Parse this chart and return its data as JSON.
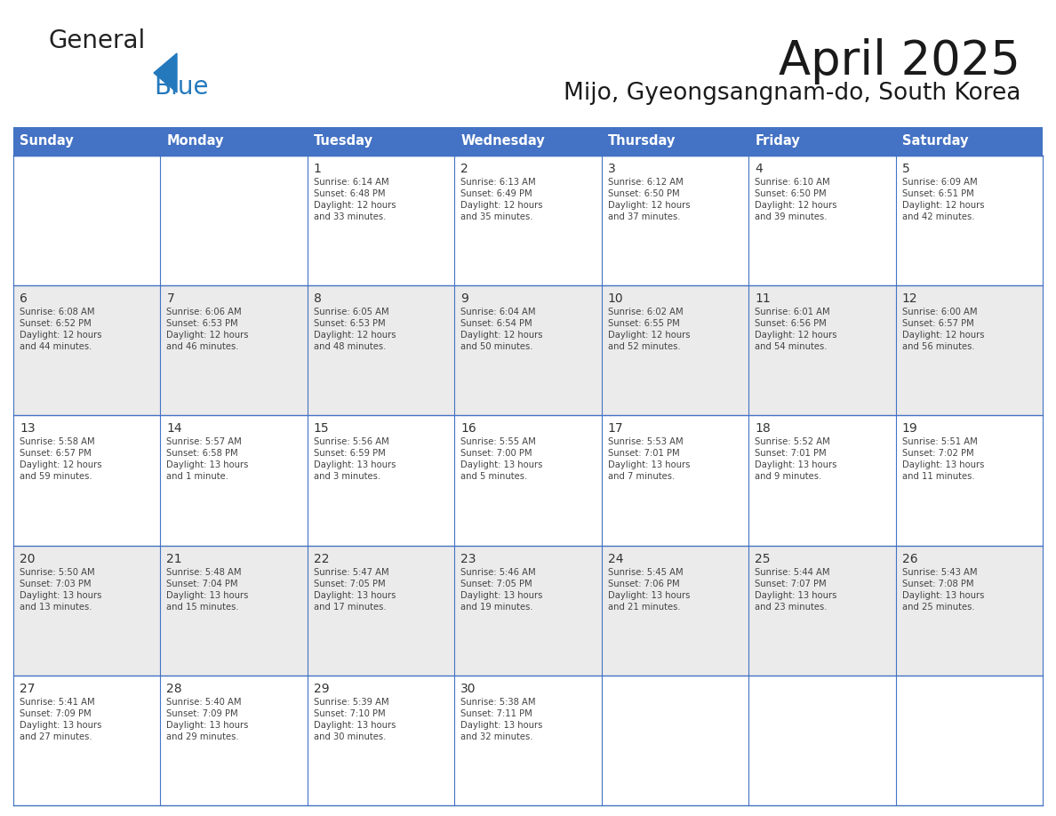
{
  "title": "April 2025",
  "subtitle": "Mijo, Gyeongsangnam-do, South Korea",
  "header_bg_color": "#4472C4",
  "header_text_color": "#FFFFFF",
  "header_font_size": 10.5,
  "day_names": [
    "Sunday",
    "Monday",
    "Tuesday",
    "Wednesday",
    "Thursday",
    "Friday",
    "Saturday"
  ],
  "title_font_size": 38,
  "subtitle_font_size": 19,
  "cell_text_color": "#444444",
  "day_number_color": "#333333",
  "line_color": "#4472C4",
  "row_bg_colors": [
    "#FFFFFF",
    "#EBEBEB",
    "#FFFFFF",
    "#EBEBEB",
    "#FFFFFF"
  ],
  "logo_general_color": "#222222",
  "logo_blue_color": "#2479BD",
  "weeks": [
    {
      "days": [
        {
          "date": "",
          "sunrise": "",
          "sunset": "",
          "daylight": ""
        },
        {
          "date": "",
          "sunrise": "",
          "sunset": "",
          "daylight": ""
        },
        {
          "date": "1",
          "sunrise": "6:14 AM",
          "sunset": "6:48 PM",
          "daylight": "12 hours\nand 33 minutes."
        },
        {
          "date": "2",
          "sunrise": "6:13 AM",
          "sunset": "6:49 PM",
          "daylight": "12 hours\nand 35 minutes."
        },
        {
          "date": "3",
          "sunrise": "6:12 AM",
          "sunset": "6:50 PM",
          "daylight": "12 hours\nand 37 minutes."
        },
        {
          "date": "4",
          "sunrise": "6:10 AM",
          "sunset": "6:50 PM",
          "daylight": "12 hours\nand 39 minutes."
        },
        {
          "date": "5",
          "sunrise": "6:09 AM",
          "sunset": "6:51 PM",
          "daylight": "12 hours\nand 42 minutes."
        }
      ]
    },
    {
      "days": [
        {
          "date": "6",
          "sunrise": "6:08 AM",
          "sunset": "6:52 PM",
          "daylight": "12 hours\nand 44 minutes."
        },
        {
          "date": "7",
          "sunrise": "6:06 AM",
          "sunset": "6:53 PM",
          "daylight": "12 hours\nand 46 minutes."
        },
        {
          "date": "8",
          "sunrise": "6:05 AM",
          "sunset": "6:53 PM",
          "daylight": "12 hours\nand 48 minutes."
        },
        {
          "date": "9",
          "sunrise": "6:04 AM",
          "sunset": "6:54 PM",
          "daylight": "12 hours\nand 50 minutes."
        },
        {
          "date": "10",
          "sunrise": "6:02 AM",
          "sunset": "6:55 PM",
          "daylight": "12 hours\nand 52 minutes."
        },
        {
          "date": "11",
          "sunrise": "6:01 AM",
          "sunset": "6:56 PM",
          "daylight": "12 hours\nand 54 minutes."
        },
        {
          "date": "12",
          "sunrise": "6:00 AM",
          "sunset": "6:57 PM",
          "daylight": "12 hours\nand 56 minutes."
        }
      ]
    },
    {
      "days": [
        {
          "date": "13",
          "sunrise": "5:58 AM",
          "sunset": "6:57 PM",
          "daylight": "12 hours\nand 59 minutes."
        },
        {
          "date": "14",
          "sunrise": "5:57 AM",
          "sunset": "6:58 PM",
          "daylight": "13 hours\nand 1 minute."
        },
        {
          "date": "15",
          "sunrise": "5:56 AM",
          "sunset": "6:59 PM",
          "daylight": "13 hours\nand 3 minutes."
        },
        {
          "date": "16",
          "sunrise": "5:55 AM",
          "sunset": "7:00 PM",
          "daylight": "13 hours\nand 5 minutes."
        },
        {
          "date": "17",
          "sunrise": "5:53 AM",
          "sunset": "7:01 PM",
          "daylight": "13 hours\nand 7 minutes."
        },
        {
          "date": "18",
          "sunrise": "5:52 AM",
          "sunset": "7:01 PM",
          "daylight": "13 hours\nand 9 minutes."
        },
        {
          "date": "19",
          "sunrise": "5:51 AM",
          "sunset": "7:02 PM",
          "daylight": "13 hours\nand 11 minutes."
        }
      ]
    },
    {
      "days": [
        {
          "date": "20",
          "sunrise": "5:50 AM",
          "sunset": "7:03 PM",
          "daylight": "13 hours\nand 13 minutes."
        },
        {
          "date": "21",
          "sunrise": "5:48 AM",
          "sunset": "7:04 PM",
          "daylight": "13 hours\nand 15 minutes."
        },
        {
          "date": "22",
          "sunrise": "5:47 AM",
          "sunset": "7:05 PM",
          "daylight": "13 hours\nand 17 minutes."
        },
        {
          "date": "23",
          "sunrise": "5:46 AM",
          "sunset": "7:05 PM",
          "daylight": "13 hours\nand 19 minutes."
        },
        {
          "date": "24",
          "sunrise": "5:45 AM",
          "sunset": "7:06 PM",
          "daylight": "13 hours\nand 21 minutes."
        },
        {
          "date": "25",
          "sunrise": "5:44 AM",
          "sunset": "7:07 PM",
          "daylight": "13 hours\nand 23 minutes."
        },
        {
          "date": "26",
          "sunrise": "5:43 AM",
          "sunset": "7:08 PM",
          "daylight": "13 hours\nand 25 minutes."
        }
      ]
    },
    {
      "days": [
        {
          "date": "27",
          "sunrise": "5:41 AM",
          "sunset": "7:09 PM",
          "daylight": "13 hours\nand 27 minutes."
        },
        {
          "date": "28",
          "sunrise": "5:40 AM",
          "sunset": "7:09 PM",
          "daylight": "13 hours\nand 29 minutes."
        },
        {
          "date": "29",
          "sunrise": "5:39 AM",
          "sunset": "7:10 PM",
          "daylight": "13 hours\nand 30 minutes."
        },
        {
          "date": "30",
          "sunrise": "5:38 AM",
          "sunset": "7:11 PM",
          "daylight": "13 hours\nand 32 minutes."
        },
        {
          "date": "",
          "sunrise": "",
          "sunset": "",
          "daylight": ""
        },
        {
          "date": "",
          "sunrise": "",
          "sunset": "",
          "daylight": ""
        },
        {
          "date": "",
          "sunrise": "",
          "sunset": "",
          "daylight": ""
        }
      ]
    }
  ]
}
